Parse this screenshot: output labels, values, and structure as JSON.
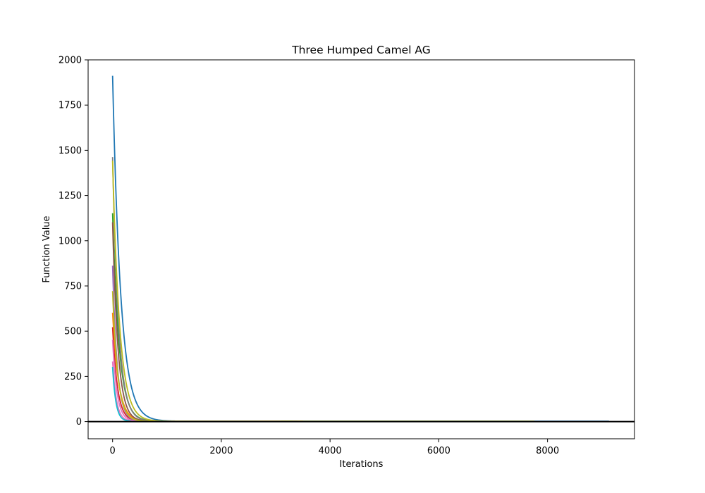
{
  "chart_data": {
    "type": "line",
    "title": "Three Humped Camel AG",
    "xlabel": "Iterations",
    "ylabel": "Function Value",
    "xlim": [
      -450,
      9600
    ],
    "ylim": [
      -95,
      2000
    ],
    "xticks": [
      0,
      2000,
      4000,
      6000,
      8000
    ],
    "yticks": [
      0,
      250,
      500,
      750,
      1000,
      1250,
      1500,
      1750,
      2000
    ],
    "xtick_labels": [
      "0",
      "2000",
      "4000",
      "6000",
      "8000"
    ],
    "ytick_labels": [
      "0",
      "250",
      "500",
      "750",
      "1000",
      "1250",
      "1500",
      "1750",
      "2000"
    ],
    "reference_line": {
      "y": 0,
      "color": "#000000"
    },
    "grid": false,
    "legend": "none",
    "series": [
      {
        "color": "#1f77b4",
        "start": 1910,
        "decay": 150,
        "end_x": 9130
      },
      {
        "color": "#ff7f0e",
        "start": 600,
        "decay": 110,
        "end_x": 3500
      },
      {
        "color": "#2ca02c",
        "start": 1150,
        "decay": 120,
        "end_x": 3300
      },
      {
        "color": "#d62728",
        "start": 520,
        "decay": 90,
        "end_x": 2900
      },
      {
        "color": "#9467bd",
        "start": 860,
        "decay": 85,
        "end_x": 2800
      },
      {
        "color": "#8c564b",
        "start": 1100,
        "decay": 100,
        "end_x": 3200
      },
      {
        "color": "#e377c2",
        "start": 330,
        "decay": 70,
        "end_x": 3000
      },
      {
        "color": "#7f7f7f",
        "start": 1460,
        "decay": 110,
        "end_x": 3400
      },
      {
        "color": "#bcbd22",
        "start": 1440,
        "decay": 130,
        "end_x": 7760
      },
      {
        "color": "#17becf",
        "start": 300,
        "decay": 60,
        "end_x": 2700
      },
      {
        "color": "#e377c2",
        "start": 450,
        "decay": 80,
        "end_x": 3100
      },
      {
        "color": "#bcbd22",
        "start": 720,
        "decay": 95,
        "end_x": 3300
      }
    ]
  }
}
